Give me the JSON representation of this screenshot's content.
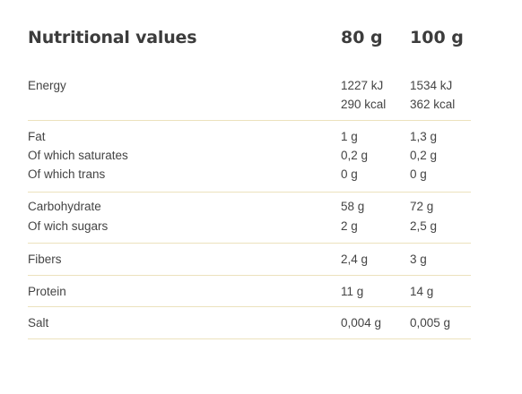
{
  "header": {
    "title": "Nutritional values",
    "col_80": "80 g",
    "col_100": "100 g"
  },
  "rows": {
    "energy": {
      "label": "Energy",
      "kj_80": "1227 kJ",
      "kj_100": "1534 kJ",
      "kcal_80": "290 kcal",
      "kcal_100": "362 kcal"
    },
    "fat": {
      "label": "Fat",
      "v80": "1 g",
      "v100": "1,3 g"
    },
    "saturates": {
      "label": "Of which saturates",
      "v80": "0,2 g",
      "v100": "0,2 g"
    },
    "trans": {
      "label": "Of which trans",
      "v80": "0 g",
      "v100": "0 g"
    },
    "carbohydrate": {
      "label": "Carbohydrate",
      "v80": "58 g",
      "v100": "72 g"
    },
    "sugars": {
      "label": "Of wich sugars",
      "v80": "2 g",
      "v100": "2,5 g"
    },
    "fibers": {
      "label": "Fibers",
      "v80": "2,4 g",
      "v100": "3 g"
    },
    "protein": {
      "label": "Protein",
      "v80": "11 g",
      "v100": "14 g"
    },
    "salt": {
      "label": "Salt",
      "v80": "0,004 g",
      "v100": "0,005 g"
    }
  },
  "colors": {
    "divider": "#ece2bd",
    "text": "#444444",
    "heading": "#3c3c3c"
  }
}
